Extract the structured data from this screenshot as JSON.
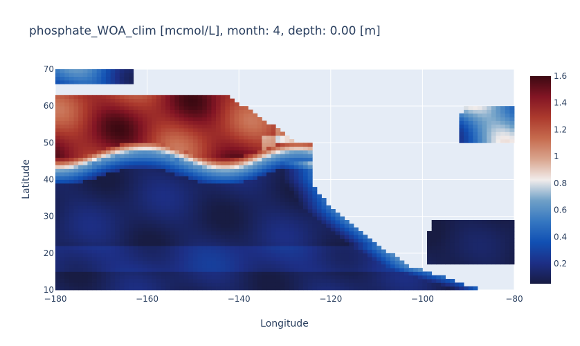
{
  "chart_data": {
    "type": "heatmap",
    "title": "phosphate_WOA_clim [mcmol/L], month: 4, depth: 0.00 [m]",
    "xlabel": "Longitude",
    "ylabel": "Latitude",
    "xlim": [
      -180,
      -80
    ],
    "ylim": [
      10,
      70
    ],
    "x_ticks": [
      -180,
      -160,
      -140,
      -120,
      -100,
      -80
    ],
    "y_ticks": [
      10,
      20,
      30,
      40,
      50,
      60,
      70
    ],
    "x_tick_labels": [
      "−180",
      "−160",
      "−140",
      "−120",
      "−100",
      "−80"
    ],
    "y_tick_labels": [
      "10",
      "20",
      "30",
      "40",
      "50",
      "60",
      "70"
    ],
    "grid": true,
    "cell_size_degrees": 1,
    "colorscale": "balance",
    "zlim": [
      0.05,
      1.6
    ],
    "colorbar": {
      "ticks": [
        0.2,
        0.4,
        0.6,
        0.8,
        1,
        1.2,
        1.4,
        1.6
      ],
      "tick_labels": [
        "0.2",
        "0.4",
        "0.6",
        "0.8",
        "1",
        "1.2",
        "1.4",
        "1.6"
      ]
    },
    "colorscale_colors": [
      [
        0.0,
        "#181c43"
      ],
      [
        0.1,
        "#1d2f86"
      ],
      [
        0.2,
        "#1150b3"
      ],
      [
        0.3,
        "#3577c1"
      ],
      [
        0.4,
        "#6fa0c7"
      ],
      [
        0.5,
        "#f1eceb"
      ],
      [
        0.6,
        "#d9a58e"
      ],
      [
        0.7,
        "#c66b4e"
      ],
      [
        0.8,
        "#ac3a2d"
      ],
      [
        0.9,
        "#831524"
      ],
      [
        1.0,
        "#3c0912"
      ]
    ],
    "field_description": {
      "north_pacific_band_high": "lat 47-62 west of -130, values ~1.3-1.6",
      "transition_front": "lat ~43-46, values ~0.6-0.9",
      "subtropical_gyre": "lat 10-40, values ~0.05-0.3",
      "coastal_upwelling": "near American coast, values ~0.4-0.6"
    }
  },
  "colors": {
    "plot_background": "#e5ecf6",
    "grid": "#ffffff",
    "text": "#2a3f5f"
  }
}
